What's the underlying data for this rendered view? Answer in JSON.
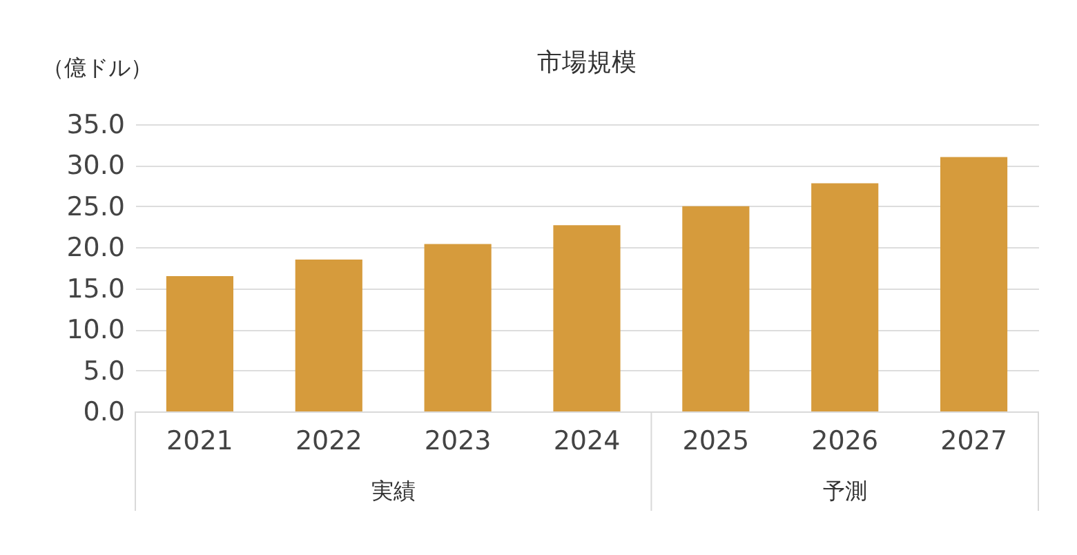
{
  "chart_data": {
    "type": "bar",
    "title": "市場規模",
    "ylabel": "（億ドル）",
    "categories": [
      "2021",
      "2022",
      "2023",
      "2024",
      "2025",
      "2026",
      "2027"
    ],
    "values": [
      16.5,
      18.5,
      20.4,
      22.7,
      25.0,
      27.8,
      31.0
    ],
    "color": "#d69b3c",
    "ylim": [
      0,
      35
    ],
    "yticks": [
      {
        "value": 0,
        "label": "0.0"
      },
      {
        "value": 5,
        "label": "5.0"
      },
      {
        "value": 10,
        "label": "10.0"
      },
      {
        "value": 15,
        "label": "15.0"
      },
      {
        "value": 20,
        "label": "20.0"
      },
      {
        "value": 25,
        "label": "25.0"
      },
      {
        "value": 30,
        "label": "30.0"
      },
      {
        "value": 35,
        "label": "35.0"
      }
    ],
    "grid": "y",
    "annotations": [
      "実績",
      "予測"
    ]
  }
}
